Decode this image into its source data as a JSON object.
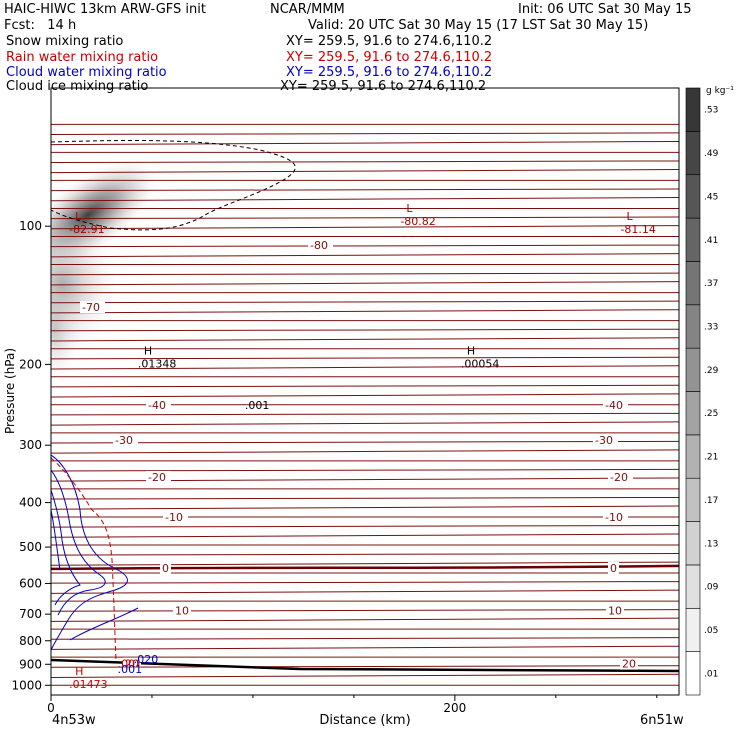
{
  "header": {
    "model": "HAIC-HIWC 13km ARW-GFS init",
    "org": "NCAR/MMM",
    "init": "Init: 06 UTC Sat 30 May 15",
    "fcst": "Fcst:   14 h",
    "valid": "Valid: 20 UTC Sat 30 May 15 (17 LST Sat 30 May 15)",
    "fields": [
      {
        "name": "Snow mixing ratio",
        "xy": "XY= 259.5, 91.6 to 274.6,110.2",
        "color": "#000000"
      },
      {
        "name": "Rain water mixing ratio",
        "xy": "XY= 259.5, 91.6 to 274.6,110.2",
        "color": "#cc0000"
      },
      {
        "name": "Cloud water mixing ratio",
        "xy": "XY= 259.5, 91.6 to 274.6,110.2",
        "color": "#0000cc"
      },
      {
        "name": "Cloud ice mixing ratio",
        "xy": "XY= 259.5, 91.6 to 274.6,110.2",
        "color": "#000000"
      }
    ]
  },
  "chart_data": {
    "type": "heatmap",
    "xlabel": "Distance (km)",
    "ylabel": "Pressure (hPa)",
    "xlim": [
      0,
      311
    ],
    "ylim": [
      50,
      1050
    ],
    "y_scale": "log",
    "x_ticks": [
      0,
      200
    ],
    "y_ticks": [
      100,
      200,
      300,
      400,
      500,
      600,
      700,
      800,
      900,
      1000
    ],
    "x_endpoints": {
      "left": "4n53w",
      "right": "6n51w"
    },
    "colorbar": {
      "unit": "g kg⁻¹",
      "labels": [
        ".01",
        ".05",
        ".09",
        ".13",
        ".17",
        ".21",
        ".25",
        ".29",
        ".33",
        ".37",
        ".41",
        ".45",
        ".49",
        ".53"
      ]
    },
    "temperature_contours": [
      {
        "label": "-80",
        "p": 110
      },
      {
        "label": "-70",
        "p": 150
      },
      {
        "label": "-40",
        "p": 245
      },
      {
        "label": "-30",
        "p": 292
      },
      {
        "label": "-20",
        "p": 352
      },
      {
        "label": "-10",
        "p": 430
      },
      {
        "label": "0",
        "p": 555
      },
      {
        "label": "10",
        "p": 688
      },
      {
        "label": "20",
        "p": 897
      }
    ],
    "extrema": [
      {
        "type": "L",
        "value": "-82.91",
        "x": 9,
        "p": 100,
        "color": "#aa0000"
      },
      {
        "type": "L",
        "value": "-80.82",
        "x": 173,
        "p": 96,
        "color": "#aa0000"
      },
      {
        "type": "L",
        "value": "-81.14",
        "x": 282,
        "p": 100,
        "color": "#aa0000"
      },
      {
        "type": "H",
        "value": ".01348",
        "x": 43,
        "p": 196,
        "color": "#000000"
      },
      {
        "type": "H",
        "value": ".00054",
        "x": 203,
        "p": 196,
        "color": "#000000"
      },
      {
        "type": "H",
        "value": ".01473",
        "x": 9,
        "p": 980,
        "color": "#cc0000"
      }
    ],
    "contour_labels": [
      {
        "value": ".001",
        "x": 96,
        "p": 250,
        "color": "#000000"
      },
      {
        "value": ".001",
        "x": 33,
        "p": 915,
        "color": "#cc0000"
      },
      {
        "value": ".001",
        "x": 33,
        "p": 940,
        "color": "#0000cc"
      },
      {
        "value": ".020",
        "x": 41,
        "p": 895,
        "color": "#0000cc"
      }
    ]
  }
}
